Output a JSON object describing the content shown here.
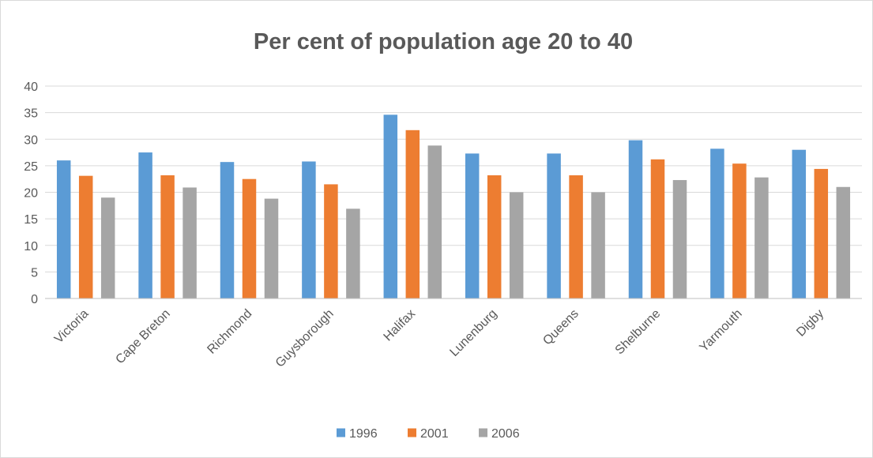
{
  "chart_data": {
    "type": "bar",
    "title": "Per cent of population age 20 to 40",
    "xlabel": "",
    "ylabel": "",
    "ylim": [
      0,
      40
    ],
    "yticks": [
      0,
      5,
      10,
      15,
      20,
      25,
      30,
      35,
      40
    ],
    "grid": true,
    "legend": "bottom",
    "categories": [
      "Victoria",
      "Cape Breton",
      "Richmond",
      "Guysborough",
      "Halifax",
      "Lunenburg",
      "Queens",
      "Shelburne",
      "Yarmouth",
      "Digby"
    ],
    "series": [
      {
        "name": "1996",
        "color": "#5b9bd5",
        "values": [
          26.0,
          27.5,
          25.7,
          25.8,
          34.6,
          27.3,
          27.3,
          29.8,
          28.2,
          28.0
        ]
      },
      {
        "name": "2001",
        "color": "#ed7d31",
        "values": [
          23.1,
          23.2,
          22.5,
          21.5,
          31.7,
          23.2,
          23.2,
          26.2,
          25.4,
          24.4
        ]
      },
      {
        "name": "2006",
        "color": "#a5a5a5",
        "values": [
          19.0,
          20.9,
          18.8,
          16.9,
          28.8,
          20.0,
          20.0,
          22.3,
          22.8,
          21.0
        ]
      }
    ]
  }
}
